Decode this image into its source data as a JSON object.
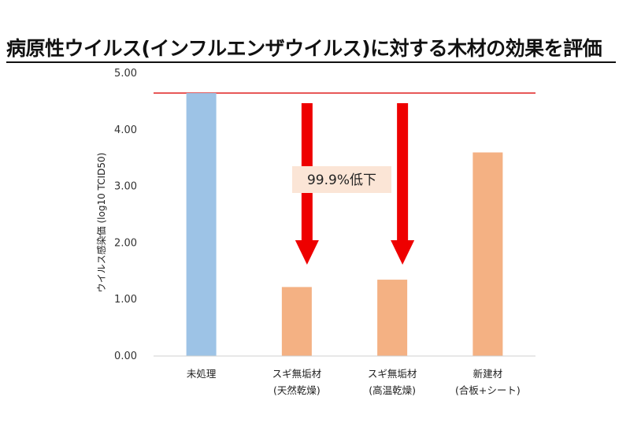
{
  "chart_data": {
    "type": "bar",
    "title": "病原性ウイルス(インフルエンザウイルス)に対する木材の効果を評価",
    "ylabel": "ウイルス感染価 (log10 TCID50)",
    "ylim": [
      0,
      5
    ],
    "yticks": [
      "0.00",
      "1.00",
      "2.00",
      "3.00",
      "4.00",
      "5.00"
    ],
    "categories": [
      {
        "line1": "未処理",
        "line2": ""
      },
      {
        "line1": "スギ無垢材",
        "line2": "(天然乾燥)"
      },
      {
        "line1": "スギ無垢材",
        "line2": "(高温乾燥)"
      },
      {
        "line1": "新建材",
        "line2": "(合板+シート)"
      }
    ],
    "values": [
      4.65,
      1.22,
      1.35,
      3.6
    ],
    "bar_colors": [
      "#9dc3e6",
      "#f4b183",
      "#f4b183",
      "#f4b183"
    ],
    "reference_line": {
      "value": 4.65,
      "color": "#e02020"
    },
    "annotation": {
      "text": "99.9%低下",
      "arrow_color": "#ee0000",
      "arrow_targets": [
        1,
        2
      ]
    },
    "grid": false,
    "legend": "none"
  }
}
